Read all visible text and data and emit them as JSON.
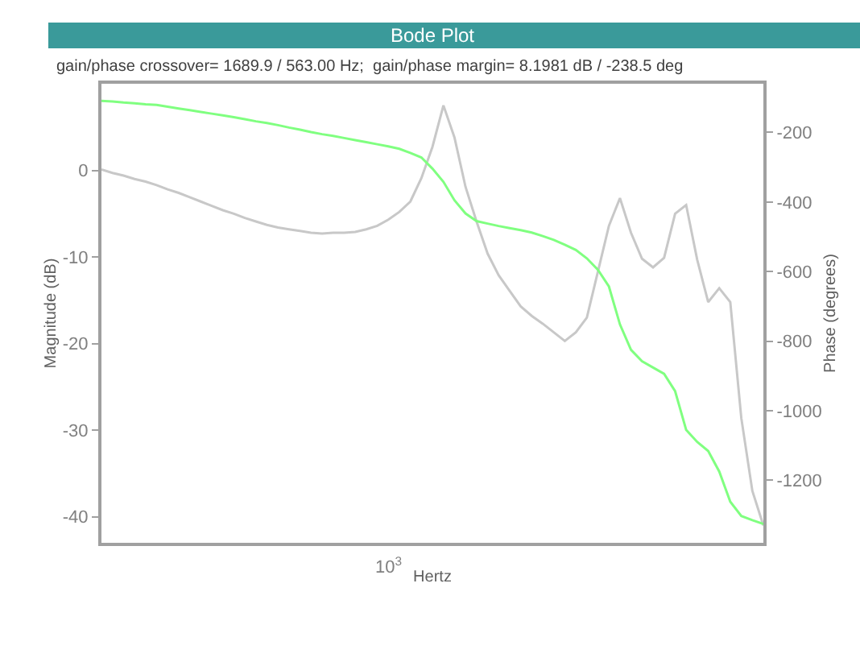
{
  "chart_data": {
    "type": "line",
    "title": "Bode Plot",
    "subtitle": "gain/phase crossover= 1689.9 / 563.00 Hz;  gain/phase margin= 8.1981 dB / -238.5 deg",
    "xlabel": "Hertz",
    "ylabel": "Magnitude (dB)",
    "y2label": "Phase (degrees)",
    "annotations": [
      "10$^{3}$"
    ],
    "marker": "none",
    "line_style": "solid",
    "categories": [
      null,
      null,
      null,
      null,
      null,
      null,
      null,
      null,
      null,
      null,
      null,
      null,
      null,
      null,
      null,
      null,
      null,
      null,
      null,
      null,
      null,
      null,
      null,
      null,
      null,
      null,
      null,
      null,
      null,
      null,
      null,
      null,
      null,
      null,
      null,
      null,
      null,
      null,
      null,
      null,
      null,
      null,
      null,
      null,
      null,
      null,
      null,
      null,
      null,
      null,
      null,
      null,
      null,
      null,
      null,
      null,
      null,
      null,
      null,
      null,
      null
    ],
    "ylim": [
      -43,
      10
    ],
    "yticks": [
      0,
      -10,
      -20,
      -30,
      -40
    ],
    "y2lim": [
      -1380,
      -60
    ],
    "y2ticks": [
      -200,
      -400,
      -600,
      -800,
      -1000,
      -1200
    ],
    "series": [
      {
        "color": "#c8c8c8",
        "values": [
          0.1,
          -0.3,
          -0.6,
          -1.0,
          -1.3,
          -1.7,
          -2.2,
          -2.6,
          -3.1,
          -3.6,
          -4.1,
          -4.6,
          -5.0,
          -5.5,
          -5.9,
          -6.3,
          -6.6,
          -6.8,
          -7.0,
          -7.2,
          -7.3,
          -7.2,
          -7.2,
          -7.1,
          -6.8,
          -6.4,
          -5.7,
          -4.8,
          -3.6,
          -0.9,
          2.7,
          7.5,
          3.8,
          -1.9,
          -5.9,
          -9.6,
          -12.1,
          -13.9,
          -15.7,
          -16.8,
          -17.7,
          -18.7,
          -19.7,
          -18.7,
          -17.0,
          -11.7,
          -6.4,
          -3.2,
          -7.2,
          -10.2,
          -11.2,
          -10.1,
          -5.0,
          -4.0,
          -10.3,
          -15.2,
          -13.6,
          -15.2,
          -28.6,
          -37.0,
          -41.0
        ]
      },
      {
        "color": "#80ff80",
        "axis": "y2",
        "values": [
          -109,
          -111,
          -114,
          -116,
          -119,
          -121,
          -126,
          -131,
          -136,
          -141,
          -146,
          -151,
          -156,
          -162,
          -168,
          -173,
          -179,
          -186,
          -192,
          -199,
          -205,
          -210,
          -216,
          -222,
          -228,
          -234,
          -240,
          -247,
          -259,
          -272,
          -304,
          -342,
          -395,
          -433,
          -455,
          -462,
          -469,
          -475,
          -481,
          -488,
          -498,
          -509,
          -523,
          -538,
          -562,
          -595,
          -643,
          -752,
          -825,
          -858,
          -876,
          -894,
          -944,
          -1055,
          -1090,
          -1116,
          -1175,
          -1262,
          -1303,
          -1315,
          -1326
        ]
      }
    ]
  }
}
